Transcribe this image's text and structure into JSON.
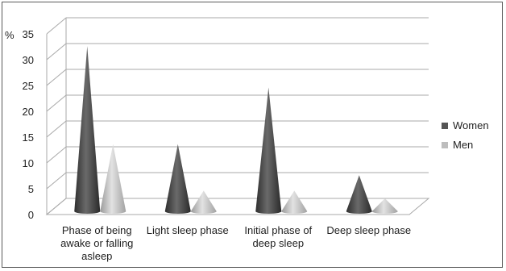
{
  "chart_data": {
    "type": "bar",
    "style": "3d-cone",
    "y_unit_label": "%",
    "ylim": [
      0,
      35
    ],
    "y_ticks": [
      "0",
      "5",
      "10",
      "15",
      "20",
      "25",
      "30",
      "35"
    ],
    "grid": true,
    "legend": "right",
    "categories": [
      [
        "Phase of being",
        "awake or falling",
        "asleep"
      ],
      [
        "Light sleep phase"
      ],
      [
        "Initial phase of",
        "deep sleep"
      ],
      [
        "Deep sleep phase"
      ]
    ],
    "series": [
      {
        "name": "Women",
        "color": "#555555",
        "values": [
          32,
          13,
          24,
          7
        ]
      },
      {
        "name": "Men",
        "color": "#bdbdbd",
        "values": [
          13,
          4,
          4,
          2.5
        ]
      }
    ]
  }
}
